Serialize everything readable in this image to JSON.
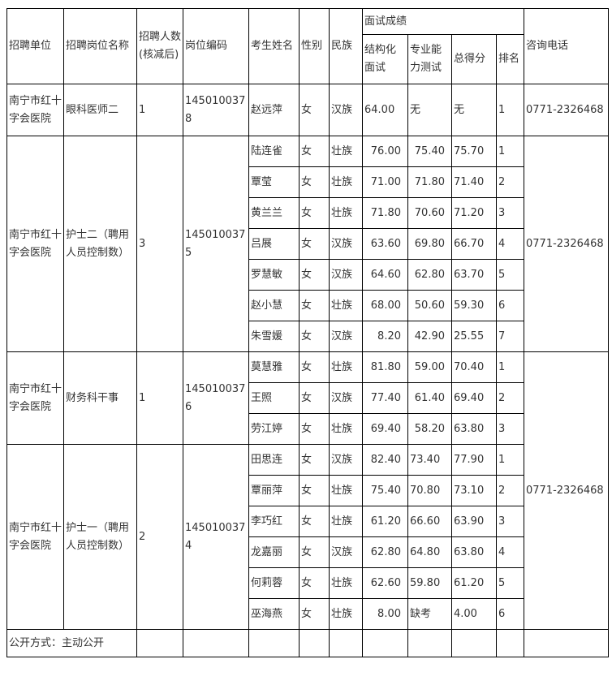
{
  "headers": {
    "unit": "招聘单位",
    "post": "招聘岗位名称",
    "count": "招聘人数(核减后)",
    "code": "岗位编码",
    "name": "考生姓名",
    "gender": "性别",
    "ethnic": "民族",
    "interview": "面试成绩",
    "structured": "结构化面试",
    "professional": "专业能力测试",
    "total": "总得分",
    "rank": "排名",
    "phone": "咨询电话"
  },
  "groups": [
    {
      "unit": "南宁市红十字会医院",
      "post": "眼科医师二",
      "count": "1",
      "code": "1450100378",
      "phone": "0771-2326468",
      "rows": [
        [
          "赵远萍",
          "女",
          "汉族",
          "64.00",
          "无",
          "无",
          "1"
        ]
      ]
    },
    {
      "unit": "南宁市红十字会医院",
      "post": "护士二（聘用人员控制数）",
      "count": "3",
      "code": "1450100375",
      "phone": "0771-2326468",
      "rows": [
        [
          "陆连雀",
          "女",
          "壮族",
          "76.00",
          "75.40",
          "75.70",
          "1"
        ],
        [
          "覃莹",
          "女",
          "壮族",
          "71.00",
          "71.80",
          "71.40",
          "2"
        ],
        [
          "黄兰兰",
          "女",
          "壮族",
          "71.80",
          "70.60",
          "71.20",
          "3"
        ],
        [
          "吕展",
          "女",
          "汉族",
          "63.60",
          "69.80",
          "66.70",
          "4"
        ],
        [
          "罗慧敏",
          "女",
          "汉族",
          "64.60",
          "62.80",
          "63.70",
          "5"
        ],
        [
          "赵小慧",
          "女",
          "壮族",
          "68.00",
          "50.60",
          "59.30",
          "6"
        ],
        [
          "朱雪媛",
          "女",
          "汉族",
          "8.20",
          "42.90",
          "25.55",
          "7"
        ]
      ]
    },
    {
      "unit": "南宁市红十字会医院",
      "post": "财务科干事",
      "count": "1",
      "code": "1450100376",
      "phone": "0771-2326468",
      "rows": [
        [
          "莫慧雅",
          "女",
          "壮族",
          "81.80",
          "59.00",
          "70.40",
          "1"
        ],
        [
          "王照",
          "女",
          "汉族",
          "77.40",
          "61.40",
          "69.40",
          "2"
        ],
        [
          "劳江婷",
          "女",
          "壮族",
          "69.40",
          "58.20",
          "63.80",
          "3"
        ]
      ]
    },
    {
      "unit": "南宁市红十字会医院",
      "post": "护士一（聘用人员控制数）",
      "count": "2",
      "code": "1450100374",
      "rows": [
        [
          "田思连",
          "女",
          "汉族",
          "82.40",
          "73.40",
          "77.90",
          "1"
        ],
        [
          "覃丽萍",
          "女",
          "壮族",
          "75.40",
          "70.80",
          "73.10",
          "2"
        ],
        [
          "李巧红",
          "女",
          "壮族",
          "61.20",
          "66.60",
          "63.90",
          "3"
        ],
        [
          "龙嘉丽",
          "女",
          "汉族",
          "62.80",
          "64.80",
          "63.80",
          "4"
        ],
        [
          "何莉蓉",
          "女",
          "壮族",
          "62.60",
          "59.80",
          "61.20",
          "5"
        ],
        [
          "巫海燕",
          "女",
          "壮族",
          "8.00",
          "缺考",
          "4.00",
          "6"
        ]
      ]
    }
  ],
  "footer": "公开方式：主动公开"
}
